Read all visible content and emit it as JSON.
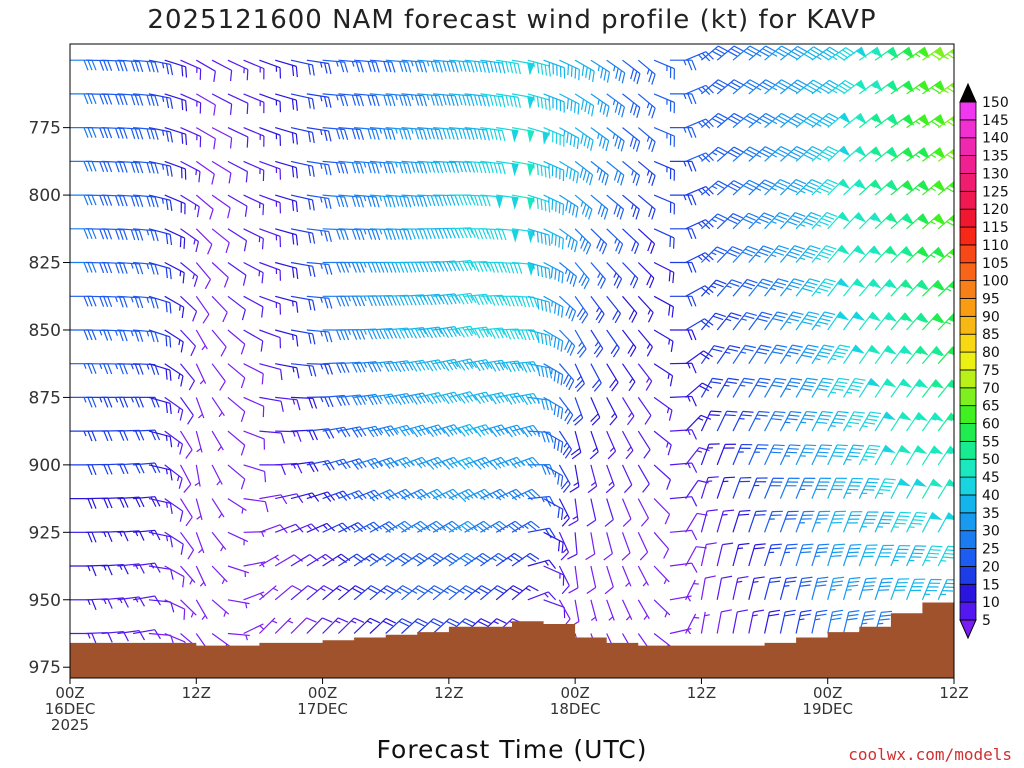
{
  "chart_data": {
    "type": "wind_profile",
    "title": "2025121600 NAM forecast wind profile (kt) for KAVP",
    "xlabel": "Forecast Time (UTC)",
    "ylabel": "",
    "credit": "coolwx.com/models",
    "units": "kt",
    "y_axis": {
      "range": [
        979,
        744
      ],
      "ticks": [
        775,
        800,
        825,
        850,
        875,
        900,
        925,
        950,
        975
      ]
    },
    "x_axis": {
      "range_hours": [
        0,
        84
      ],
      "ticks": [
        {
          "hour": 0,
          "lines": [
            "00Z",
            "16DEC",
            "2025"
          ]
        },
        {
          "hour": 12,
          "lines": [
            "12Z"
          ]
        },
        {
          "hour": 24,
          "lines": [
            "00Z",
            "17DEC"
          ]
        },
        {
          "hour": 36,
          "lines": [
            "12Z"
          ]
        },
        {
          "hour": 48,
          "lines": [
            "00Z",
            "18DEC"
          ]
        },
        {
          "hour": 60,
          "lines": [
            "12Z"
          ]
        },
        {
          "hour": 72,
          "lines": [
            "00Z",
            "19DEC"
          ]
        },
        {
          "hour": 84,
          "lines": [
            "12Z"
          ]
        }
      ]
    },
    "colorbar": {
      "levels": [
        5,
        10,
        15,
        20,
        25,
        30,
        35,
        40,
        45,
        50,
        55,
        60,
        65,
        70,
        75,
        80,
        85,
        90,
        95,
        100,
        105,
        110,
        115,
        120,
        125,
        130,
        135,
        140,
        145,
        150
      ],
      "colors": [
        "#7a1cf5",
        "#5318f0",
        "#2a14e0",
        "#1c3ce8",
        "#1c5cf0",
        "#1a7cf0",
        "#189af0",
        "#14b4ec",
        "#18d4e0",
        "#1ce8c0",
        "#18ec90",
        "#20ec50",
        "#40f020",
        "#7ef020",
        "#b8f018",
        "#ecf014",
        "#f8d814",
        "#f8b814",
        "#f89c14",
        "#f88018",
        "#f86418",
        "#f84818",
        "#f82818",
        "#f01830",
        "#f01850",
        "#f01c70",
        "#f02090",
        "#f028b0",
        "#f030d0",
        "#f038f0"
      ]
    },
    "surface_pressure": {
      "hours": [
        0,
        3,
        6,
        9,
        12,
        15,
        18,
        21,
        24,
        27,
        30,
        33,
        36,
        39,
        42,
        45,
        48,
        51,
        54,
        57,
        60,
        63,
        66,
        69,
        72,
        75,
        78,
        81,
        84
      ],
      "values": [
        966,
        966,
        966,
        966,
        967,
        967,
        966,
        966,
        965,
        964,
        963,
        962,
        960,
        960,
        958,
        959,
        964,
        966,
        967,
        967,
        967,
        967,
        966,
        964,
        962,
        960,
        955,
        951,
        946
      ]
    },
    "winds": {
      "description": "Wind speed (kt) by forecast hour (rows) and pressure level (columns). Direction is the meteorological direction the wind blows from.",
      "levels_hpa": [
        750,
        775,
        800,
        825,
        850,
        875,
        900,
        925,
        950,
        975
      ],
      "hours": [
        0,
        6,
        12,
        18,
        24,
        30,
        36,
        42,
        48,
        54,
        60,
        66,
        72,
        78,
        84
      ],
      "speed_kt": [
        [
          30,
          30,
          30,
          30,
          28,
          25,
          20,
          18,
          15,
          10
        ],
        [
          28,
          28,
          28,
          26,
          25,
          22,
          20,
          15,
          12,
          8
        ],
        [
          10,
          8,
          8,
          8,
          7,
          6,
          5,
          5,
          5,
          5
        ],
        [
          15,
          15,
          14,
          14,
          12,
          10,
          10,
          8,
          6,
          5
        ],
        [
          25,
          28,
          30,
          30,
          30,
          28,
          25,
          20,
          15,
          10
        ],
        [
          30,
          35,
          38,
          40,
          40,
          38,
          35,
          30,
          25,
          15
        ],
        [
          40,
          42,
          45,
          45,
          45,
          42,
          40,
          35,
          25,
          15
        ],
        [
          48,
          50,
          50,
          48,
          45,
          40,
          35,
          25,
          15,
          10
        ],
        [
          40,
          40,
          35,
          30,
          25,
          20,
          15,
          10,
          8,
          5
        ],
        [
          25,
          25,
          20,
          18,
          15,
          12,
          10,
          8,
          5,
          5
        ],
        [
          28,
          28,
          25,
          25,
          22,
          20,
          15,
          10,
          8,
          5
        ],
        [
          35,
          35,
          35,
          35,
          32,
          30,
          30,
          25,
          20,
          15
        ],
        [
          45,
          48,
          50,
          50,
          48,
          45,
          42,
          40,
          35,
          25
        ],
        [
          62,
          62,
          60,
          58,
          55,
          52,
          50,
          45,
          40,
          30
        ],
        [
          78,
          75,
          72,
          70,
          65,
          60,
          55,
          50,
          45,
          35
        ]
      ],
      "direction_deg": [
        [
          270,
          270,
          270,
          270,
          270,
          270,
          270,
          270,
          270,
          270
        ],
        [
          275,
          275,
          275,
          275,
          275,
          270,
          265,
          265,
          260,
          260
        ],
        [
          300,
          300,
          310,
          320,
          330,
          340,
          350,
          340,
          330,
          320
        ],
        [
          290,
          290,
          290,
          290,
          290,
          280,
          270,
          250,
          230,
          220
        ],
        [
          275,
          275,
          275,
          270,
          270,
          265,
          255,
          245,
          230,
          220
        ],
        [
          275,
          275,
          275,
          270,
          265,
          260,
          250,
          240,
          230,
          225
        ],
        [
          275,
          275,
          270,
          265,
          260,
          255,
          250,
          240,
          230,
          225
        ],
        [
          280,
          280,
          280,
          275,
          270,
          260,
          250,
          240,
          230,
          225
        ],
        [
          300,
          305,
          310,
          320,
          330,
          340,
          350,
          355,
          350,
          340
        ],
        [
          310,
          310,
          310,
          315,
          320,
          325,
          330,
          335,
          330,
          320
        ],
        [
          230,
          230,
          230,
          225,
          220,
          210,
          200,
          195,
          190,
          190
        ],
        [
          230,
          230,
          225,
          220,
          215,
          210,
          205,
          200,
          195,
          190
        ],
        [
          235,
          230,
          225,
          220,
          215,
          210,
          205,
          200,
          195,
          190
        ],
        [
          235,
          235,
          230,
          225,
          220,
          215,
          210,
          205,
          200,
          195
        ],
        [
          235,
          235,
          230,
          230,
          225,
          220,
          215,
          210,
          205,
          200
        ]
      ]
    }
  }
}
